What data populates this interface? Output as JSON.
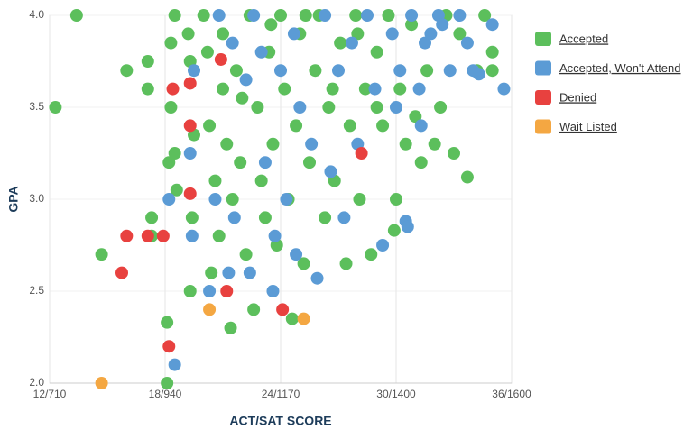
{
  "chart_data": {
    "type": "scatter",
    "x_label": "ACT/SAT SCORE",
    "y_label": "GPA",
    "xlim": [
      12,
      36
    ],
    "ylim": [
      2,
      4
    ],
    "xticks": [
      {
        "value": 12,
        "label": "12/710"
      },
      {
        "value": 18,
        "label": "18/940"
      },
      {
        "value": 24,
        "label": "24/1170"
      },
      {
        "value": 30,
        "label": "30/1400"
      },
      {
        "value": 36,
        "label": "36/1600"
      }
    ],
    "yticks": [
      {
        "value": 2,
        "label": "2.0"
      },
      2.5,
      {
        "value": 3,
        "label": "3.0"
      },
      3.5,
      {
        "value": 4,
        "label": "4.0"
      }
    ],
    "grid": true,
    "legend": "right",
    "series": [
      {
        "name": "Accepted",
        "color": "#5cbf5c",
        "x": [
          12.3,
          13.4,
          14.7,
          16.0,
          17.1,
          17.1,
          17.3,
          17.3,
          18.1,
          18.1,
          18.2,
          18.3,
          18.3,
          18.5,
          18.5,
          18.6,
          19.2,
          19.3,
          19.3,
          19.4,
          19.5,
          20.0,
          20.2,
          20.3,
          20.4,
          20.6,
          20.8,
          21.0,
          21.2,
          21.4,
          21.5,
          21.7,
          21.9,
          22.2,
          22.4,
          22.6,
          22.8,
          23.0,
          23.2,
          23.4,
          23.6,
          23.8,
          24.0,
          24.2,
          24.4,
          24.6,
          24.8,
          25.0,
          25.2,
          25.5,
          25.8,
          26.0,
          26.3,
          26.5,
          26.8,
          27.1,
          27.4,
          27.6,
          27.9,
          28.1,
          28.4,
          28.7,
          29.0,
          29.3,
          29.6,
          29.9,
          30.0,
          30.2,
          30.5,
          30.8,
          31.0,
          31.3,
          31.6,
          32.0,
          32.3,
          32.6,
          33.0,
          33.3,
          33.7,
          34.2,
          34.6,
          35.0,
          35.0,
          21.0,
          22.0,
          23.5,
          25.3,
          26.7,
          28.0,
          29.0
        ],
        "values": [
          3.5,
          4.0,
          2.7,
          3.7,
          3.75,
          3.6,
          2.9,
          2.8,
          2.0,
          2.33,
          3.2,
          3.85,
          3.5,
          4.0,
          3.25,
          3.05,
          3.9,
          3.75,
          2.5,
          2.9,
          3.35,
          4.0,
          3.8,
          3.4,
          2.6,
          3.1,
          2.8,
          3.6,
          3.3,
          2.3,
          3.0,
          3.7,
          3.2,
          2.7,
          4.0,
          2.4,
          3.5,
          3.1,
          2.9,
          3.8,
          3.3,
          2.75,
          4.0,
          3.6,
          3.0,
          2.35,
          3.4,
          3.9,
          2.65,
          3.2,
          3.7,
          4.0,
          2.9,
          3.5,
          3.1,
          3.85,
          2.65,
          3.4,
          4.0,
          3.0,
          3.6,
          2.7,
          3.8,
          3.4,
          4.0,
          2.83,
          3.0,
          3.6,
          3.3,
          3.95,
          3.45,
          3.2,
          3.7,
          3.3,
          3.5,
          4.0,
          3.25,
          3.9,
          3.12,
          3.7,
          4.0,
          3.8,
          3.7,
          3.9,
          3.55,
          3.95,
          4.0,
          3.6,
          3.9,
          3.5
        ]
      },
      {
        "name": "Accepted, Won't Attend",
        "color": "#5b9bd5",
        "x": [
          18.5,
          18.2,
          19.3,
          19.4,
          19.5,
          20.3,
          20.6,
          20.8,
          21.3,
          21.5,
          21.6,
          22.2,
          22.4,
          22.6,
          23.0,
          23.2,
          23.6,
          23.7,
          24.0,
          24.3,
          24.7,
          24.8,
          25.0,
          25.6,
          25.9,
          26.3,
          26.6,
          27.0,
          27.3,
          27.7,
          28.0,
          28.5,
          28.9,
          29.3,
          29.8,
          30.2,
          30.5,
          30.6,
          30.8,
          31.2,
          31.5,
          31.8,
          32.2,
          32.4,
          32.8,
          33.3,
          33.7,
          34.0,
          34.3,
          35.0,
          35.6,
          31.3,
          30.0
        ],
        "values": [
          2.1,
          3.0,
          3.25,
          2.8,
          3.7,
          2.5,
          3.0,
          4.0,
          2.6,
          3.85,
          2.9,
          3.65,
          2.6,
          4.0,
          3.8,
          3.2,
          2.5,
          2.8,
          3.7,
          3.0,
          3.9,
          2.7,
          3.5,
          3.3,
          2.57,
          4.0,
          3.15,
          3.7,
          2.9,
          3.85,
          3.3,
          4.0,
          3.6,
          2.75,
          3.9,
          3.7,
          2.88,
          2.85,
          4.0,
          3.6,
          3.85,
          3.9,
          4.0,
          3.95,
          3.7,
          4.0,
          3.85,
          3.7,
          3.68,
          3.95,
          3.6,
          3.4,
          3.5
        ]
      },
      {
        "name": "Denied",
        "color": "#e8413f",
        "x": [
          16.0,
          17.1,
          17.9,
          15.75,
          18.4,
          18.2,
          19.3,
          19.3,
          20.9,
          21.2,
          24.1,
          28.2,
          19.3
        ],
        "values": [
          2.8,
          2.8,
          2.8,
          2.6,
          3.6,
          2.2,
          3.63,
          3.4,
          3.76,
          2.5,
          2.4,
          3.25,
          3.03
        ]
      },
      {
        "name": "Wait Listed",
        "color": "#f4a742",
        "x": [
          14.7,
          20.3,
          25.2
        ],
        "values": [
          2.0,
          2.4,
          2.35
        ]
      }
    ]
  }
}
